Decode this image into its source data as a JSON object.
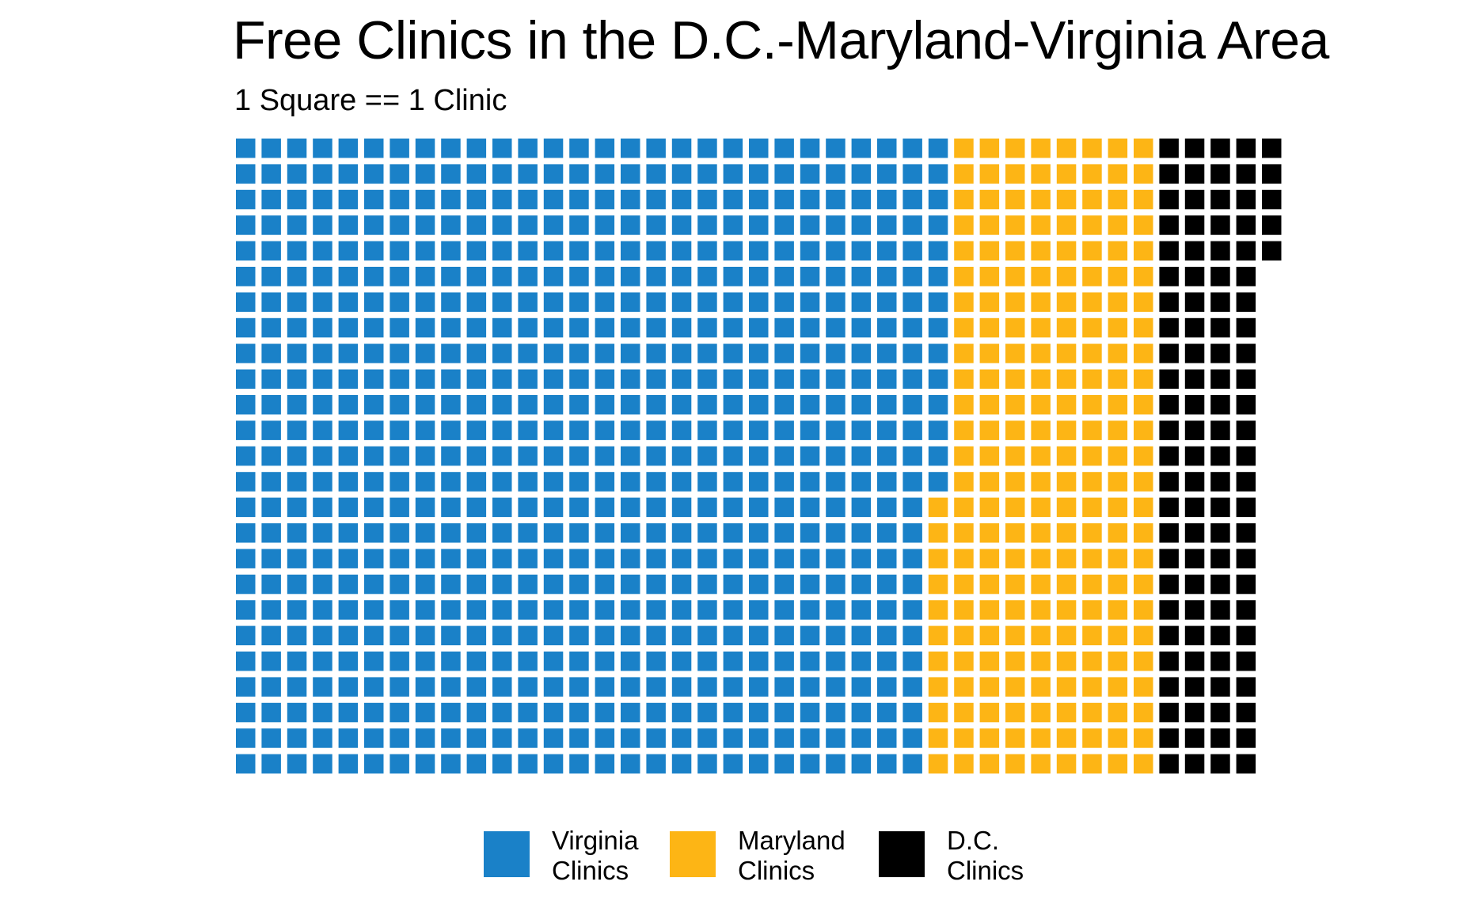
{
  "chart_data": {
    "type": "waffle",
    "title": "Free Clinics in the D.C.-Maryland-Virginia Area",
    "subtitle": "1 Square == 1 Clinic",
    "rows": 25,
    "fill_order": "column-major, top-to-bottom, left-to-right",
    "series": [
      {
        "name": "Virginia Clinics",
        "label_lines": [
          "Virginia",
          "Clinics"
        ],
        "value": 689,
        "color": "#1a81c8"
      },
      {
        "name": "Maryland Clinics",
        "label_lines": [
          "Maryland",
          "Clinics"
        ],
        "value": 211,
        "color": "#fdb515"
      },
      {
        "name": "D.C. Clinics",
        "label_lines": [
          "D.C.",
          "Clinics"
        ],
        "value": 105,
        "color": "#000000"
      }
    ],
    "legend_position": "bottom"
  }
}
